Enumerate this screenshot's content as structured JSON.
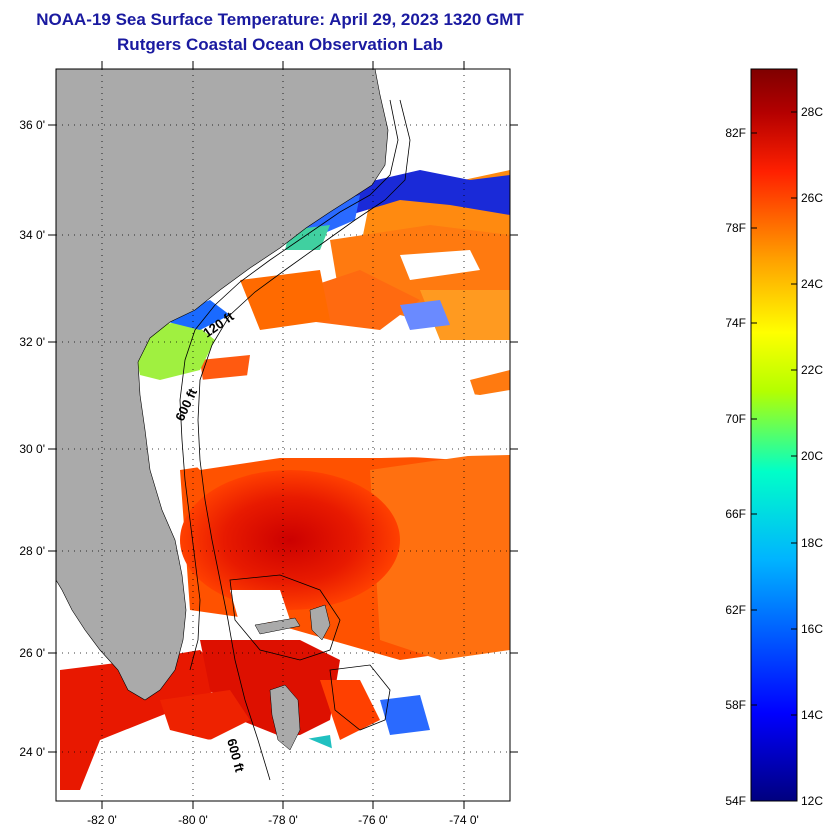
{
  "header": {
    "title": "NOAA-19 Sea Surface Temperature:  April 29, 2023 1320 GMT",
    "subtitle": "Rutgers Coastal Ocean Observation Lab"
  },
  "map": {
    "lat_labels": [
      "36 0'",
      "34 0'",
      "32 0'",
      "30 0'",
      "28 0'",
      "26 0'",
      "24 0'"
    ],
    "lon_labels": [
      "-82 0'",
      "-80 0'",
      "-78 0'",
      "-76 0'",
      "-74 0'"
    ],
    "contour_labels": [
      "120 ft",
      "600 ft",
      "600 ft"
    ],
    "colors": {
      "land": "#aaaaaa",
      "cloud": "#ffffff"
    }
  },
  "colorbar": {
    "f_labels": [
      "82F",
      "78F",
      "74F",
      "70F",
      "66F",
      "62F",
      "58F",
      "54F"
    ],
    "c_labels": [
      "28C",
      "26C",
      "24C",
      "22C",
      "20C",
      "18C",
      "16C",
      "14C",
      "12C"
    ],
    "colors": [
      "#00007f",
      "#0000ff",
      "#00b4ff",
      "#00ffc8",
      "#b4ff00",
      "#ffff00",
      "#ffa000",
      "#ff2000",
      "#b40000",
      "#7f0000"
    ]
  }
}
